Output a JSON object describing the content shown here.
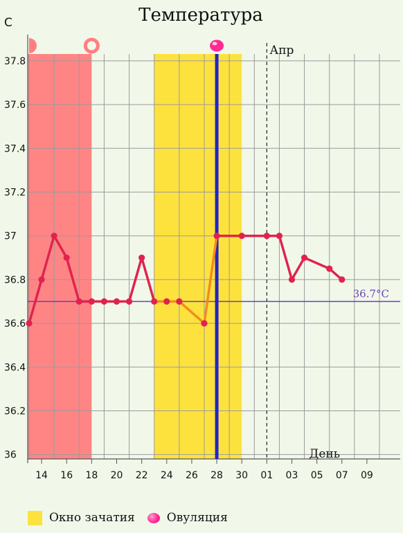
{
  "chart_data": {
    "type": "line",
    "title": "Температура",
    "ylabel": "C",
    "xlabel": "День",
    "ylim": [
      35.98,
      37.92
    ],
    "yticks": [
      36,
      36.2,
      36.4,
      36.6,
      36.8,
      37,
      37.2,
      37.4,
      37.6,
      37.8
    ],
    "ytick_labels": [
      "36",
      "36.2",
      "36.4",
      "36.6",
      "36.8",
      "37",
      "37.2",
      "37.4",
      "37.6",
      "37.8"
    ],
    "xtick_labels": [
      "14",
      "16",
      "18",
      "20",
      "22",
      "24",
      "26",
      "28",
      "30",
      "01",
      "03",
      "05",
      "07",
      "09"
    ],
    "month_marker": {
      "label": "Апр",
      "day": "01"
    },
    "dates": [
      "13",
      "14",
      "15",
      "16",
      "17",
      "18",
      "19",
      "20",
      "21",
      "22",
      "23",
      "24",
      "25",
      "26",
      "27",
      "28",
      "29",
      "30",
      "31",
      "01",
      "02",
      "03",
      "04",
      "05",
      "06",
      "07",
      "08",
      "09",
      "10"
    ],
    "series": [
      {
        "color": "#e0234e",
        "points": [
          {
            "x": "13",
            "y": 36.6
          },
          {
            "x": "14",
            "y": 36.8
          },
          {
            "x": "15",
            "y": 37.0
          },
          {
            "x": "16",
            "y": 36.9
          },
          {
            "x": "17",
            "y": 36.7
          },
          {
            "x": "18",
            "y": 36.7
          },
          {
            "x": "19",
            "y": 36.7
          },
          {
            "x": "20",
            "y": 36.7
          },
          {
            "x": "21",
            "y": 36.7
          },
          {
            "x": "22",
            "y": 36.9
          },
          {
            "x": "23",
            "y": 36.7
          }
        ]
      },
      {
        "color": "#f28c1e",
        "points": [
          {
            "x": "23",
            "y": 36.7
          },
          {
            "x": "24",
            "y": 36.7
          },
          {
            "x": "25",
            "y": 36.7
          },
          {
            "x": "27",
            "y": 36.6
          },
          {
            "x": "28",
            "y": 37.0
          }
        ]
      },
      {
        "color": "#e0234e",
        "points": [
          {
            "x": "28",
            "y": 37.0
          },
          {
            "x": "30",
            "y": 37.0
          },
          {
            "x": "01",
            "y": 37.0
          },
          {
            "x": "02",
            "y": 37.0
          },
          {
            "x": "03",
            "y": 36.8
          },
          {
            "x": "04",
            "y": 36.9
          },
          {
            "x": "06",
            "y": 36.85
          },
          {
            "x": "07",
            "y": 36.8
          }
        ]
      }
    ],
    "markers": [
      {
        "x": "13",
        "y": 36.6,
        "color": "#e0234e"
      },
      {
        "x": "14",
        "y": 36.8,
        "color": "#e0234e"
      },
      {
        "x": "15",
        "y": 37.0,
        "color": "#e0234e"
      },
      {
        "x": "16",
        "y": 36.9,
        "color": "#e0234e"
      },
      {
        "x": "17",
        "y": 36.7,
        "color": "#e0234e"
      },
      {
        "x": "18",
        "y": 36.7,
        "color": "#e0234e"
      },
      {
        "x": "19",
        "y": 36.7,
        "color": "#e0234e"
      },
      {
        "x": "20",
        "y": 36.7,
        "color": "#e0234e"
      },
      {
        "x": "21",
        "y": 36.7,
        "color": "#e0234e"
      },
      {
        "x": "22",
        "y": 36.9,
        "color": "#e0234e"
      },
      {
        "x": "23",
        "y": 36.7,
        "color": "#e0234e"
      },
      {
        "x": "24",
        "y": 36.7,
        "color": "#e0234e"
      },
      {
        "x": "25",
        "y": 36.7,
        "color": "#e0234e"
      },
      {
        "x": "27",
        "y": 36.6,
        "color": "#e0234e"
      },
      {
        "x": "28",
        "y": 37.0,
        "color": "#e0234e"
      },
      {
        "x": "30",
        "y": 37.0,
        "color": "#e0234e"
      },
      {
        "x": "01",
        "y": 37.0,
        "color": "#e0234e"
      },
      {
        "x": "02",
        "y": 37.0,
        "color": "#e0234e"
      },
      {
        "x": "03",
        "y": 36.8,
        "color": "#e0234e"
      },
      {
        "x": "04",
        "y": 36.9,
        "color": "#e0234e"
      },
      {
        "x": "06",
        "y": 36.85,
        "color": "#e0234e"
      },
      {
        "x": "07",
        "y": 36.8,
        "color": "#e0234e"
      }
    ],
    "coverline": {
      "y": 36.7,
      "label": "36.7°C",
      "color": "#6a3db8"
    },
    "period_band": {
      "from": "13",
      "to": "18",
      "color": "#ff8585"
    },
    "fertile_window": {
      "from": "23",
      "to": "30",
      "color": "#fde23e"
    },
    "ovulation": {
      "x": "28",
      "color": "#2424c8"
    },
    "top_icons": [
      {
        "x": "13",
        "icon": "period-start-half-circle-icon",
        "color": "#ff7f7f"
      },
      {
        "x": "18",
        "icon": "period-end-ring-icon",
        "color": "#ff7f7f"
      },
      {
        "x": "28",
        "icon": "ovulation-dot-icon",
        "color": "#ff2a92"
      }
    ],
    "grid": true
  },
  "legend": {
    "fertile_label": "Окно зачатия",
    "ovulation_label": "Овуляция"
  }
}
